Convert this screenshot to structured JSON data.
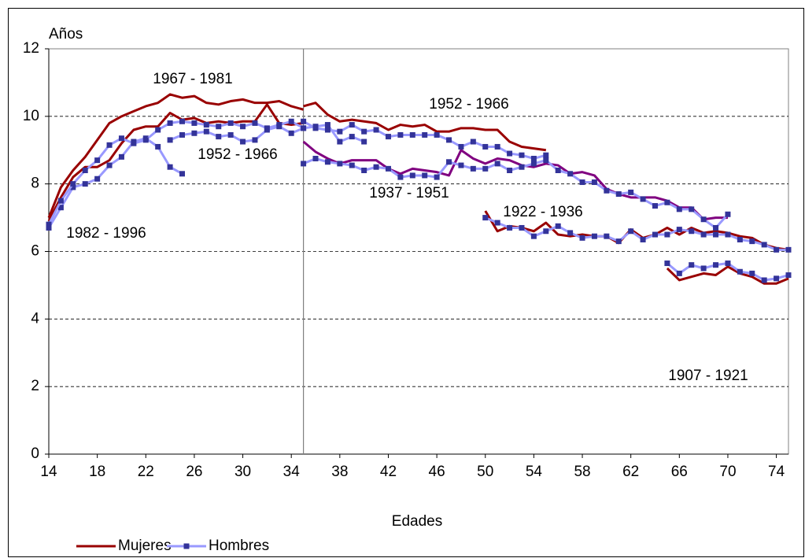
{
  "chart_data": {
    "type": "line",
    "y_label": "Años",
    "x_label": "Edades",
    "xlim": [
      14,
      75
    ],
    "xticks": [
      14,
      18,
      22,
      26,
      30,
      34,
      38,
      42,
      46,
      50,
      54,
      58,
      62,
      66,
      70,
      74
    ],
    "ylim": [
      0,
      12
    ],
    "yticks": [
      0,
      2,
      4,
      6,
      8,
      10,
      12
    ],
    "grid": true,
    "vline": 35,
    "legend": "bottom-left",
    "annotations": [
      "1967 - 1981",
      "1952 - 1966",
      "1982 - 1996",
      "1952 - 1966",
      "1937 - 1951",
      "1922 - 1936",
      "1907 - 1921"
    ],
    "series": [
      {
        "name": "Mujeres",
        "color": "#990000",
        "segments": [
          {
            "x": [
              14,
              15,
              16,
              17,
              18,
              19,
              20,
              21,
              22,
              23,
              24,
              25,
              26,
              27,
              28,
              29,
              30,
              31,
              32,
              33,
              34,
              35
            ],
            "values": [
              7.0,
              7.9,
              8.4,
              8.8,
              9.3,
              9.8,
              10.0,
              10.15,
              10.3,
              10.4,
              10.65,
              10.55,
              10.6,
              10.4,
              10.35,
              10.45,
              10.5,
              10.4,
              10.4,
              10.45,
              10.3,
              10.2
            ]
          },
          {
            "x": [
              14,
              15,
              16,
              17,
              18,
              19,
              20,
              21,
              22,
              23,
              24,
              25
            ],
            "values": [
              6.9,
              7.6,
              8.2,
              8.5,
              8.5,
              8.7,
              9.2,
              9.6,
              9.7,
              9.7,
              10.1,
              9.9
            ]
          },
          {
            "x": [
              25,
              26,
              27,
              28,
              29,
              30,
              31,
              32,
              33,
              34,
              35
            ],
            "values": [
              9.9,
              9.95,
              9.8,
              9.85,
              9.8,
              9.85,
              9.85,
              10.35,
              9.8,
              9.75,
              9.8
            ]
          },
          {
            "x": [
              35,
              36,
              37,
              38,
              39,
              40,
              41,
              42,
              43,
              44,
              45,
              46,
              47,
              48,
              49,
              50,
              51,
              52,
              53,
              54,
              55
            ],
            "values": [
              10.3,
              10.4,
              10.05,
              9.85,
              9.9,
              9.85,
              9.8,
              9.6,
              9.75,
              9.7,
              9.75,
              9.55,
              9.55,
              9.65,
              9.65,
              9.6,
              9.6,
              9.25,
              9.1,
              9.05,
              9.0
            ]
          },
          {
            "color": "#800080",
            "x": [
              35,
              36,
              37,
              38,
              39,
              40,
              41,
              42,
              43,
              44,
              45,
              46,
              47,
              48,
              49,
              50,
              51,
              52,
              53,
              54,
              55,
              56,
              57,
              58,
              59,
              60,
              61,
              62,
              63,
              64,
              65,
              66,
              67,
              68,
              69,
              70
            ],
            "values": [
              9.25,
              8.95,
              8.75,
              8.6,
              8.7,
              8.7,
              8.7,
              8.45,
              8.3,
              8.45,
              8.4,
              8.35,
              8.25,
              9.0,
              8.75,
              8.6,
              8.75,
              8.7,
              8.55,
              8.5,
              8.6,
              8.55,
              8.3,
              8.35,
              8.25,
              7.85,
              7.7,
              7.6,
              7.6,
              7.6,
              7.5,
              7.3,
              7.3,
              6.95,
              7.0,
              7.0
            ]
          },
          {
            "x": [
              50,
              51,
              52,
              53,
              54,
              55,
              56,
              57,
              58,
              59,
              60,
              61,
              62,
              63,
              64,
              65,
              66,
              67,
              68,
              69,
              70,
              71,
              72,
              73,
              74,
              75
            ],
            "values": [
              7.2,
              6.6,
              6.75,
              6.7,
              6.6,
              6.85,
              6.5,
              6.45,
              6.5,
              6.45,
              6.45,
              6.25,
              6.65,
              6.4,
              6.5,
              6.7,
              6.5,
              6.7,
              6.55,
              6.6,
              6.55,
              6.45,
              6.4,
              6.2,
              6.1,
              6.05
            ]
          },
          {
            "x": [
              65,
              66,
              67,
              68,
              69,
              70,
              71,
              72,
              73,
              74,
              75
            ],
            "values": [
              5.5,
              5.15,
              5.25,
              5.35,
              5.3,
              5.55,
              5.35,
              5.25,
              5.05,
              5.05,
              5.2
            ]
          }
        ]
      },
      {
        "name": "Hombres",
        "color": "#9999ff",
        "marker_color": "#333399",
        "segments": [
          {
            "x": [
              14,
              15,
              16,
              17,
              18,
              19,
              20,
              21,
              22,
              23,
              24,
              25
            ],
            "values": [
              6.7,
              7.3,
              7.9,
              8.0,
              8.15,
              8.55,
              8.8,
              9.25,
              9.35,
              9.1,
              8.5,
              8.3
            ]
          },
          {
            "x": [
              14,
              15,
              16,
              17,
              18,
              19,
              20,
              21,
              22,
              23,
              24,
              25,
              26,
              27,
              28,
              29,
              30,
              31,
              32,
              33,
              34,
              35
            ],
            "values": [
              6.8,
              7.5,
              8.0,
              8.4,
              8.7,
              9.15,
              9.35,
              9.2,
              9.3,
              9.6,
              9.8,
              9.85,
              9.8,
              9.75,
              9.7,
              9.8,
              9.7,
              9.8,
              9.65,
              9.75,
              9.85,
              9.65
            ]
          },
          {
            "x": [
              24,
              25,
              26,
              27,
              28,
              29,
              30,
              31,
              32,
              33,
              34,
              35,
              36,
              37,
              38,
              39,
              40
            ],
            "values": [
              9.3,
              9.45,
              9.5,
              9.55,
              9.4,
              9.45,
              9.25,
              9.3,
              9.6,
              9.7,
              9.5,
              9.65,
              9.7,
              9.75,
              9.25,
              9.4,
              9.25
            ]
          },
          {
            "x": [
              35,
              36,
              37,
              38,
              39,
              40,
              41,
              42,
              43,
              44,
              45,
              46,
              47,
              48,
              49,
              50,
              51,
              52,
              53,
              54,
              55
            ],
            "values": [
              9.85,
              9.65,
              9.6,
              9.55,
              9.75,
              9.55,
              9.6,
              9.4,
              9.45,
              9.45,
              9.45,
              9.45,
              9.3,
              9.1,
              9.25,
              9.1,
              9.1,
              8.9,
              8.85,
              8.75,
              8.85
            ]
          },
          {
            "x": [
              35,
              36,
              37,
              38,
              39,
              40,
              41,
              42,
              43,
              44,
              45,
              46,
              47,
              48,
              49,
              50,
              51,
              52,
              53,
              54,
              55,
              56,
              57,
              58,
              59,
              60,
              61,
              62,
              63,
              64,
              65,
              66,
              67,
              68,
              69,
              70
            ],
            "values": [
              8.6,
              8.75,
              8.65,
              8.6,
              8.55,
              8.4,
              8.5,
              8.45,
              8.2,
              8.25,
              8.25,
              8.2,
              8.65,
              8.55,
              8.45,
              8.45,
              8.6,
              8.4,
              8.5,
              8.6,
              8.7,
              8.4,
              8.3,
              8.05,
              8.05,
              7.8,
              7.7,
              7.75,
              7.55,
              7.35,
              7.45,
              7.25,
              7.25,
              6.95,
              6.7,
              7.1
            ]
          },
          {
            "x": [
              50,
              51,
              52,
              53,
              54,
              55,
              56,
              57,
              58,
              59,
              60,
              61,
              62,
              63,
              64,
              65,
              66,
              67,
              68,
              69,
              70,
              71,
              72,
              73,
              74,
              75
            ],
            "values": [
              7.0,
              6.85,
              6.7,
              6.7,
              6.45,
              6.6,
              6.75,
              6.55,
              6.4,
              6.45,
              6.45,
              6.3,
              6.6,
              6.35,
              6.5,
              6.5,
              6.65,
              6.6,
              6.5,
              6.5,
              6.5,
              6.35,
              6.3,
              6.2,
              6.05,
              6.05
            ]
          },
          {
            "x": [
              65,
              66,
              67,
              68,
              69,
              70,
              71,
              72,
              73,
              74,
              75
            ],
            "values": [
              5.65,
              5.35,
              5.6,
              5.5,
              5.6,
              5.65,
              5.4,
              5.35,
              5.15,
              5.2,
              5.3
            ]
          }
        ]
      }
    ]
  }
}
